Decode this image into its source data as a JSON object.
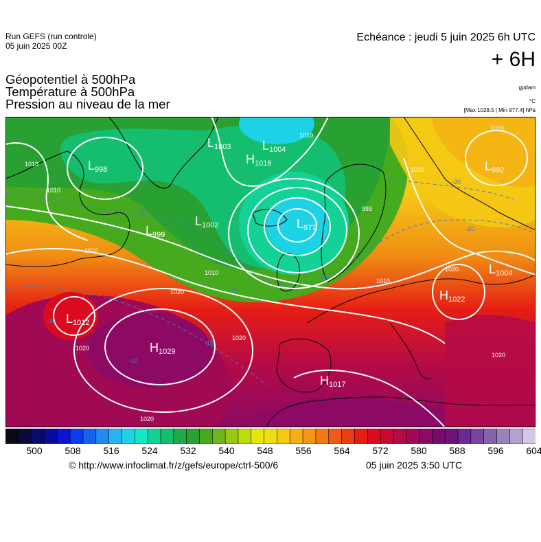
{
  "header": {
    "run_line1": "Run GEFS (run controle)",
    "run_line2": "05 juin 2025 00Z",
    "echeance": "Echéance : jeudi 5 juin 2025 6h UTC",
    "step": "+ 6H",
    "titles": [
      "Géopotentiel à 500hPa",
      "Température à 500hPa",
      "Pression au niveau de la mer"
    ],
    "unit_geopot": "gpdam",
    "unit_temp": "°C",
    "minmax": "[Max 1028.5 | Min 977.4] hPa"
  },
  "map": {
    "pressure_centers": [
      {
        "type": "L",
        "value": "998"
      },
      {
        "type": "L",
        "value": "1003"
      },
      {
        "type": "L",
        "value": "1004"
      },
      {
        "type": "H",
        "value": "1016"
      },
      {
        "type": "L",
        "value": "992"
      },
      {
        "type": "L",
        "value": "1002"
      },
      {
        "type": "L",
        "value": "977"
      },
      {
        "type": "L",
        "value": "999"
      },
      {
        "type": "L",
        "value": "1004"
      },
      {
        "type": "H",
        "value": "1022"
      },
      {
        "type": "L",
        "value": "1012"
      },
      {
        "type": "H",
        "value": "1029"
      },
      {
        "type": "H",
        "value": "1017"
      }
    ],
    "isobar_labels": [
      "1010",
      "1010",
      "1010",
      "1010",
      "1020",
      "1020",
      "1020",
      "1020",
      "1020",
      "1010",
      "1010",
      "993",
      "1018",
      "1020",
      "1010"
    ],
    "temp_labels": [
      "-20",
      "-20",
      "-20",
      "-20",
      "-20",
      "-10",
      "-10",
      "-10"
    ]
  },
  "colorbar": {
    "ticks": [
      "500",
      "508",
      "516",
      "524",
      "532",
      "540",
      "548",
      "556",
      "564",
      "572",
      "580",
      "588",
      "596",
      "604"
    ],
    "min": 500,
    "max": 604,
    "colors": [
      "#0a0a14",
      "#0a0a3c",
      "#0a0a6e",
      "#0a0aa0",
      "#0a14d2",
      "#0a3cf0",
      "#1464f0",
      "#1e8cf0",
      "#28b4f0",
      "#1ed2e6",
      "#14e6c8",
      "#14d296",
      "#14be6e",
      "#1eaa46",
      "#28a032",
      "#46aa1e",
      "#6eb41e",
      "#96c814",
      "#bedc0a",
      "#e6e60a",
      "#f0dc14",
      "#f5c814",
      "#f5af14",
      "#f59614",
      "#f57814",
      "#f05a14",
      "#eb3c14",
      "#e61e14",
      "#dc0a1e",
      "#c80a32",
      "#b40a46",
      "#a00a55",
      "#8c0a64",
      "#780a6e",
      "#6e1478",
      "#6e2896",
      "#7846a0",
      "#8264aa",
      "#9a82bc",
      "#b4a0d2",
      "#d2c8e6"
    ]
  },
  "footer": {
    "url": "© http://www.infoclimat.fr/z/gefs/europe/ctrl-500/6",
    "timestamp": "05 juin 2025  3:50 UTC"
  }
}
